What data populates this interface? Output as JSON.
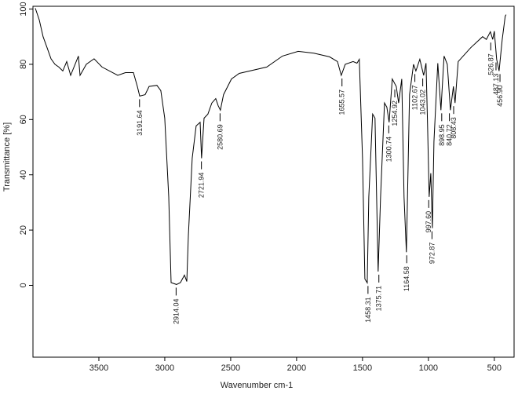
{
  "chart_data": {
    "type": "line",
    "xlabel": "Wavenumber cm-1",
    "ylabel": "Transmittance [%]",
    "xlim": [
      4000,
      350
    ],
    "ylim": [
      -26,
      101
    ],
    "xticks": [
      3500,
      3000,
      2500,
      2000,
      1500,
      1000,
      500
    ],
    "yticks": [
      0,
      20,
      40,
      60,
      80,
      100
    ],
    "color": "#000000",
    "x": [
      3982,
      3952,
      3923,
      3893,
      3863,
      3833,
      3804,
      3774,
      3744,
      3714,
      3655,
      3643,
      3595,
      3536,
      3476,
      3357,
      3298,
      3238,
      3208,
      3190,
      3149,
      3119,
      3060,
      3030,
      3000,
      2970,
      2952,
      2911,
      2881,
      2851,
      2833,
      2821,
      2792,
      2762,
      2732,
      2721,
      2702,
      2673,
      2643,
      2613,
      2595,
      2578,
      2554,
      2494,
      2435,
      2226,
      2107,
      1988,
      1869,
      1750,
      1690,
      1661,
      1631,
      1571,
      1542,
      1524,
      1500,
      1482,
      1464,
      1452,
      1423,
      1405,
      1381,
      1363,
      1333,
      1315,
      1298,
      1274,
      1244,
      1226,
      1202,
      1185,
      1167,
      1143,
      1113,
      1095,
      1065,
      1036,
      1018,
      1006,
      994,
      982,
      970,
      958,
      929,
      905,
      881,
      857,
      833,
      810,
      798,
      774,
      679,
      589,
      560,
      530,
      512,
      500,
      482,
      464,
      440,
      417,
      411
    ],
    "y": [
      100.3,
      96,
      90,
      86,
      82,
      80,
      79,
      77.6,
      81,
      76,
      83,
      76,
      80,
      82,
      79,
      76,
      77,
      77,
      72,
      68.5,
      69,
      72,
      72.4,
      70.5,
      60.5,
      32,
      1,
      0.3,
      1,
      3.7,
      1.4,
      18,
      46,
      57.7,
      59,
      46,
      60.5,
      62,
      66,
      67.6,
      65,
      63.4,
      69,
      74.7,
      76.7,
      79,
      83,
      84.7,
      84,
      82.7,
      81,
      76,
      80,
      81,
      80.4,
      81.8,
      46,
      2.3,
      0.9,
      32,
      62,
      60.5,
      5,
      32,
      66,
      64.5,
      59,
      74.7,
      72,
      66,
      74.7,
      32,
      12,
      69,
      80,
      77.6,
      81.8,
      76,
      80.4,
      57.7,
      32,
      40.6,
      20.7,
      52,
      80.4,
      63.4,
      83,
      80,
      63.4,
      72,
      66,
      81,
      86,
      90,
      89,
      91.8,
      89,
      92,
      81.8,
      77.6,
      89,
      97.4,
      98
    ],
    "annotations": [
      "3191.64",
      "2914.04",
      "2721.94",
      "2580.69",
      "1655.57",
      "1458.31",
      "1375.71",
      "1300.74",
      "1254.92",
      "1164.58",
      "1102.67",
      "1043.02",
      "997.60",
      "972.87",
      "898.95",
      "840.72",
      "808.43",
      "526.87",
      "487.13",
      "456.90"
    ]
  }
}
